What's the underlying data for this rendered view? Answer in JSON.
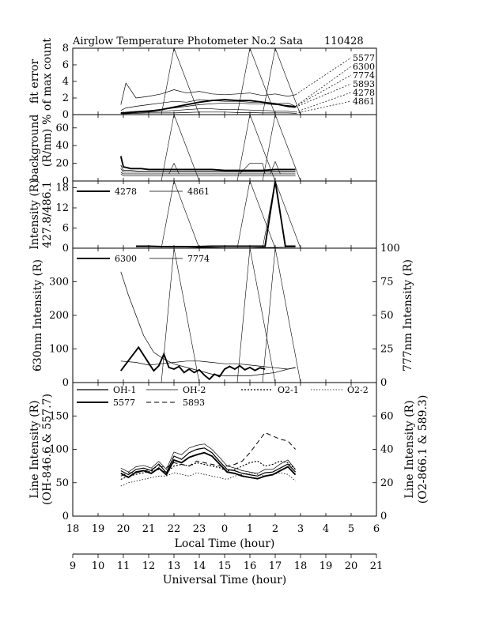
{
  "header": {
    "title": "Airglow Temperature Photometer No.2  Sata",
    "date": "110428"
  },
  "chart_data": [
    {
      "id": "fit-error",
      "type": "line",
      "ylabel": [
        "fit error",
        "% of max count"
      ],
      "ylim": [
        0,
        8
      ],
      "yticks": [
        0,
        2,
        4,
        6,
        8
      ],
      "legend_labels": [
        "5577",
        "6300",
        "7774",
        "5893",
        "4278",
        "4861"
      ],
      "x_lt": [
        19.9,
        20.1,
        20.5,
        21.0,
        21.5,
        22.0,
        22.5,
        23.0,
        23.5,
        24.0,
        24.5,
        25.0,
        25.5,
        26.0,
        26.5,
        26.8
      ],
      "series": [
        {
          "values": [
            1.2,
            3.8,
            2.0,
            2.2,
            2.5,
            3.0,
            2.6,
            2.8,
            2.5,
            2.4,
            2.5,
            2.6,
            2.3,
            2.5,
            2.2,
            2.4
          ],
          "style": "thin"
        },
        {
          "values": [
            0.5,
            0.8,
            1.0,
            1.2,
            1.4,
            1.6,
            1.5,
            1.8,
            1.7,
            1.6,
            1.6,
            1.5,
            1.5,
            1.3,
            1.4,
            1.0
          ],
          "style": "thin"
        },
        {
          "values": [
            0.2,
            0.3,
            0.4,
            0.5,
            0.6,
            0.8,
            1.0,
            1.2,
            1.3,
            1.4,
            1.4,
            1.3,
            1.3,
            1.2,
            1.1,
            1.0
          ],
          "style": "thin"
        },
        {
          "values": [
            0.2,
            0.2,
            0.3,
            0.4,
            0.6,
            0.9,
            1.2,
            1.5,
            1.7,
            1.8,
            1.7,
            1.7,
            1.5,
            1.3,
            1.0,
            0.9
          ],
          "style": "thick"
        },
        {
          "values": [
            0.15,
            0.2,
            0.25,
            0.3,
            0.4,
            0.5,
            0.6,
            0.7,
            0.7,
            0.6,
            0.6,
            0.55,
            0.5,
            0.45,
            0.4,
            0.3
          ],
          "style": "thin"
        },
        {
          "values": [
            0.1,
            0.1,
            0.15,
            0.2,
            0.2,
            0.2,
            0.25,
            0.3,
            0.3,
            0.3,
            0.25,
            0.25,
            0.2,
            0.2,
            0.2,
            0.15
          ],
          "style": "thin"
        }
      ],
      "spikes": [
        {
          "x": [
            21.5,
            22.0,
            23.0
          ],
          "y": [
            0,
            8,
            0
          ]
        },
        {
          "x": [
            24.5,
            25.0,
            26.0
          ],
          "y": [
            0,
            8,
            0
          ]
        },
        {
          "x": [
            25.5,
            26.0,
            27.0
          ],
          "y": [
            0,
            8,
            0
          ]
        }
      ]
    },
    {
      "id": "background",
      "type": "line",
      "ylabel": [
        "background",
        "(R/nm)"
      ],
      "ylim": [
        0,
        75
      ],
      "yticks": [
        0,
        20,
        40,
        60
      ],
      "x_lt": [
        19.9,
        20.0,
        20.3,
        20.7,
        21.0,
        21.5,
        22.0,
        22.5,
        23.0,
        23.5,
        24.0,
        24.5,
        25.0,
        25.5,
        26.0,
        26.5,
        26.8
      ],
      "series": [
        {
          "values": [
            28,
            16,
            14,
            14,
            13,
            13,
            13,
            13,
            13,
            13,
            12,
            12,
            12,
            12,
            13,
            13,
            13
          ],
          "style": "thick"
        },
        {
          "values": [
            18,
            12,
            12,
            11,
            11,
            11,
            11,
            11,
            11,
            11,
            11,
            11,
            11,
            11,
            11,
            11,
            11
          ],
          "style": "thin"
        },
        {
          "values": [
            14,
            10,
            10,
            10,
            10,
            10,
            10,
            10,
            10,
            10,
            10,
            10,
            10,
            10,
            10,
            10,
            10
          ],
          "style": "thin"
        },
        {
          "values": [
            10,
            8,
            8,
            8,
            8,
            8,
            8,
            8,
            8,
            8,
            8,
            8,
            8,
            8,
            8,
            8,
            8
          ],
          "style": "thin"
        },
        {
          "values": [
            8,
            6,
            6,
            6,
            6,
            6,
            6,
            6,
            6,
            6,
            6,
            6,
            6,
            6,
            6,
            6,
            6
          ],
          "style": "thin"
        }
      ],
      "spikes": [
        {
          "x": [
            21.5,
            22.0,
            23.0
          ],
          "y": [
            0,
            75,
            0
          ]
        },
        {
          "x": [
            24.5,
            25.0,
            26.0
          ],
          "y": [
            0,
            75,
            0
          ]
        },
        {
          "x": [
            25.5,
            26.0,
            27.0
          ],
          "y": [
            0,
            75,
            0
          ]
        },
        {
          "x": [
            24.6,
            25.0,
            25.2,
            25.5,
            25.6
          ],
          "y": [
            8,
            20,
            20,
            20,
            8
          ]
        },
        {
          "x": [
            25.8,
            26.0,
            26.2
          ],
          "y": [
            8,
            22,
            8
          ]
        },
        {
          "x": [
            21.8,
            22.0,
            22.2
          ],
          "y": [
            8,
            20,
            8
          ]
        }
      ]
    },
    {
      "id": "blue-lines",
      "type": "line",
      "ylabel": [
        "Intensity (R)",
        "427.8/486.1"
      ],
      "ylim": [
        0,
        20
      ],
      "yticks": [
        0,
        6,
        12,
        18
      ],
      "legend": [
        {
          "name": "4278",
          "style": "thick"
        },
        {
          "name": "4861",
          "style": "thin"
        }
      ],
      "series": [
        {
          "name": "4278",
          "x": [
            20.5,
            21.0,
            21.5,
            22.0,
            22.5,
            23.0,
            23.5,
            24.0,
            24.5,
            25.0,
            25.3,
            25.6,
            26.0,
            26.4,
            26.8
          ],
          "values": [
            0.6,
            0.6,
            0.5,
            0.5,
            0.5,
            0.5,
            0.6,
            0.6,
            0.6,
            0.6,
            0.6,
            0.6,
            20,
            0.6,
            0.6
          ],
          "style": "thick"
        },
        {
          "name": "4861",
          "x": [
            20.5,
            21.0,
            21.5,
            22.0,
            22.5,
            23.0,
            23.5,
            24.0,
            24.5,
            25.0,
            25.5,
            26.0,
            26.5,
            26.8
          ],
          "values": [
            0.4,
            0.4,
            0.4,
            0.3,
            0.3,
            0.2,
            0.2,
            0.1,
            0.1,
            0.1,
            0.2,
            0.2,
            0.3,
            0.3
          ],
          "style": "thin"
        }
      ],
      "spikes": [
        {
          "x": [
            21.5,
            22.0,
            23.0
          ],
          "y": [
            0,
            20,
            0
          ]
        },
        {
          "x": [
            24.5,
            25.0,
            26.0
          ],
          "y": [
            0,
            20,
            0
          ]
        },
        {
          "x": [
            25.5,
            26.0,
            27.0
          ],
          "y": [
            0,
            20,
            0
          ]
        }
      ]
    },
    {
      "id": "red-lines",
      "type": "line",
      "ylabel": [
        "630nm Intensity (R)"
      ],
      "ylabel_right": [
        "777nm Intensity (R)"
      ],
      "ylim": [
        0,
        400
      ],
      "yticks": [
        0,
        100,
        200,
        300
      ],
      "ylim_right": [
        0,
        100
      ],
      "yticks_right": [
        0,
        25,
        50,
        75,
        100
      ],
      "legend": [
        {
          "name": "6300",
          "style": "thick"
        },
        {
          "name": "7774",
          "style": "thin"
        }
      ],
      "series": [
        {
          "name": "6300 envelope",
          "axis": "left",
          "x": [
            19.9,
            20.2,
            20.5,
            20.8,
            21.2,
            21.6,
            22.0,
            22.5,
            23.0,
            23.5,
            24.0,
            24.5,
            25.0,
            25.5,
            26.0,
            26.5,
            26.8
          ],
          "values": [
            330,
            260,
            200,
            140,
            90,
            70,
            55,
            45,
            35,
            25,
            20,
            20,
            20,
            25,
            30,
            40,
            45
          ],
          "style": "thin"
        },
        {
          "name": "6300",
          "axis": "left",
          "x": [
            19.9,
            20.3,
            20.6,
            20.9,
            21.2,
            21.4,
            21.6,
            21.8,
            22.0,
            22.2,
            22.4,
            22.6,
            22.8,
            23.0,
            23.2,
            23.4,
            23.6,
            23.8,
            24.0,
            24.2,
            24.4,
            24.6,
            24.8,
            25.0,
            25.2,
            25.4,
            25.6
          ],
          "values": [
            35,
            75,
            105,
            70,
            35,
            50,
            85,
            45,
            40,
            48,
            30,
            40,
            30,
            38,
            22,
            10,
            25,
            18,
            40,
            48,
            40,
            50,
            38,
            45,
            36,
            44,
            40
          ],
          "style": "thick"
        },
        {
          "name": "7774",
          "axis": "right",
          "x": [
            19.9,
            20.5,
            21.0,
            21.5,
            22.0,
            22.5,
            23.0,
            23.5,
            24.0,
            24.5,
            25.0,
            25.5,
            26.0,
            26.5,
            26.8
          ],
          "values": [
            16,
            15,
            13,
            14,
            15,
            16,
            16,
            15,
            14,
            14,
            13,
            12,
            11,
            10,
            11
          ],
          "style": "thin"
        }
      ],
      "spikes": [
        {
          "x": [
            21.5,
            22.0,
            23.0
          ],
          "y": [
            0,
            400,
            0
          ]
        },
        {
          "x": [
            24.5,
            25.0,
            26.0
          ],
          "y": [
            0,
            400,
            0
          ]
        },
        {
          "x": [
            25.5,
            26.0,
            27.0
          ],
          "y": [
            0,
            400,
            0
          ]
        }
      ]
    },
    {
      "id": "line-intensity",
      "type": "line",
      "ylabel": [
        "Line Intensity (R)",
        "(OH-846.6 & 557.7)"
      ],
      "ylabel_right": [
        "Line Intensity (R)",
        "(O2-866.1 & 589.3)"
      ],
      "ylim": [
        0,
        200
      ],
      "yticks": [
        0,
        50,
        100,
        150
      ],
      "ylim_right": [
        0,
        80
      ],
      "yticks_right": [
        0,
        20,
        40,
        60
      ],
      "legend": [
        {
          "name": "OH-1",
          "style": "medium"
        },
        {
          "name": "OH-2",
          "style": "thin"
        },
        {
          "name": "O2-1",
          "style": "dotted"
        },
        {
          "name": "O2-2",
          "style": "dotted-thin"
        },
        {
          "name": "5577",
          "style": "thick"
        },
        {
          "name": "5893",
          "style": "dashed"
        }
      ],
      "x_lt": [
        19.9,
        20.2,
        20.5,
        20.8,
        21.1,
        21.4,
        21.7,
        22.0,
        22.3,
        22.6,
        22.9,
        23.2,
        23.5,
        23.8,
        24.1,
        24.4,
        24.7,
        25.0,
        25.3,
        25.6,
        25.9,
        26.2,
        26.5,
        26.8
      ],
      "series": [
        {
          "name": "OH-1",
          "axis": "left",
          "values": [
            68,
            62,
            70,
            72,
            68,
            78,
            65,
            90,
            85,
            95,
            100,
            102,
            95,
            82,
            70,
            68,
            64,
            62,
            60,
            65,
            66,
            72,
            78,
            66
          ],
          "style": "medium"
        },
        {
          "name": "OH-2",
          "axis": "left",
          "values": [
            72,
            66,
            74,
            76,
            72,
            82,
            70,
            96,
            92,
            102,
            106,
            108,
            100,
            88,
            75,
            72,
            68,
            66,
            64,
            70,
            70,
            78,
            84,
            70
          ],
          "style": "thin"
        },
        {
          "name": "5577",
          "axis": "left",
          "values": [
            64,
            58,
            66,
            68,
            64,
            72,
            62,
            84,
            80,
            88,
            92,
            95,
            90,
            78,
            66,
            64,
            60,
            58,
            56,
            60,
            62,
            68,
            74,
            62
          ],
          "style": "thick"
        },
        {
          "name": "O2-1",
          "axis": "right",
          "values": [
            22,
            24,
            25,
            26,
            27,
            28,
            26,
            30,
            31,
            30,
            32,
            31,
            30,
            29,
            27,
            28,
            30,
            32,
            33,
            30,
            31,
            33,
            32,
            28
          ],
          "style": "dotted"
        },
        {
          "name": "O2-2",
          "axis": "right",
          "values": [
            18,
            20,
            21,
            22,
            23,
            24,
            24,
            26,
            25,
            24,
            26,
            25,
            24,
            23,
            22,
            24,
            25,
            26,
            25,
            24,
            25,
            26,
            25,
            21
          ],
          "style": "dotted-thin"
        },
        {
          "name": "5893",
          "axis": "right",
          "values": [
            24,
            26,
            26,
            27,
            28,
            30,
            29,
            32,
            31,
            30,
            33,
            32,
            31,
            30,
            30,
            31,
            33,
            38,
            44,
            50,
            48,
            46,
            45,
            40
          ],
          "style": "dashed"
        }
      ]
    }
  ],
  "x_axis_lt": {
    "ticks": [
      18,
      19,
      20,
      21,
      22,
      23,
      24,
      25,
      26,
      27,
      28,
      29,
      30
    ],
    "tick_labels": [
      "18",
      "19",
      "20",
      "21",
      "22",
      "23",
      "0",
      "1",
      "2",
      "3",
      "4",
      "5",
      "6"
    ],
    "label": "Local Time (hour)"
  },
  "x_axis_ut": {
    "tick_labels": [
      "9",
      "10",
      "11",
      "12",
      "13",
      "14",
      "15",
      "16",
      "17",
      "18",
      "19",
      "20",
      "21"
    ],
    "label": "Universal Time (hour)"
  }
}
